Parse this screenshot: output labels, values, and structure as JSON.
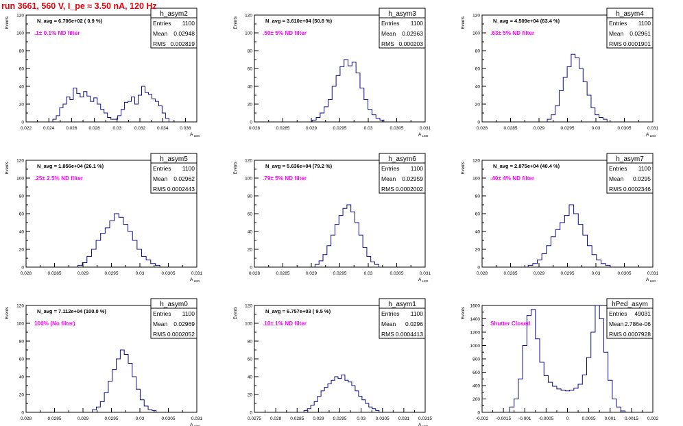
{
  "page": {
    "title": "run 3661,   560 V, I_pe ≈ 3.50 nA, 120 Hz"
  },
  "chart_data": [
    {
      "type": "histogram",
      "name": "h_asym2",
      "title": "",
      "xlabel": "A_LED",
      "ylabel": "Events",
      "xlim": [
        0.022,
        0.037
      ],
      "ylim": [
        0,
        120
      ],
      "xticks": [
        0.022,
        0.024,
        0.026,
        0.028,
        0.03,
        0.032,
        0.034,
        0.036
      ],
      "xtick_labels": [
        "0.022",
        "0.024",
        "0.026",
        "0.028",
        "0.03",
        "0.032",
        "0.034",
        "0.036"
      ],
      "yticks": [
        0,
        20,
        40,
        60,
        80,
        100,
        120
      ],
      "stats": {
        "entries": "1100",
        "mean": "0.02948",
        "rms": "0.002819"
      },
      "navg": "N_avg = 6.706e+02 ( 0.9 %)",
      "filter": ".1± 0.1% ND filter",
      "x": [
        0.0245,
        0.0248,
        0.0251,
        0.0254,
        0.0257,
        0.026,
        0.0263,
        0.0266,
        0.0269,
        0.0272,
        0.0275,
        0.0278,
        0.0281,
        0.0284,
        0.0287,
        0.029,
        0.0293,
        0.0296,
        0.0299,
        0.0302,
        0.0305,
        0.0308,
        0.0311,
        0.0314,
        0.0317,
        0.032,
        0.0323,
        0.0326,
        0.0329,
        0.0332,
        0.0335,
        0.0338,
        0.0341,
        0.0344
      ],
      "values": [
        3,
        7,
        16,
        20,
        28,
        25,
        38,
        32,
        28,
        34,
        29,
        23,
        27,
        20,
        14,
        10,
        5,
        3,
        3,
        7,
        14,
        22,
        23,
        28,
        20,
        30,
        40,
        33,
        31,
        26,
        23,
        18,
        10,
        4
      ]
    },
    {
      "type": "histogram",
      "name": "h_asym3",
      "title": "",
      "xlabel": "A_LED",
      "ylabel": "Events",
      "xlim": [
        0.028,
        0.031
      ],
      "ylim": [
        0,
        120
      ],
      "xticks": [
        0.028,
        0.0285,
        0.029,
        0.0295,
        0.03,
        0.0305,
        0.031
      ],
      "xtick_labels": [
        "0.028",
        "0.0285",
        "0.029",
        "0.0295",
        "0.03",
        "0.0305",
        "0.031"
      ],
      "yticks": [
        0,
        20,
        40,
        60,
        80,
        100,
        120
      ],
      "stats": {
        "entries": "1100",
        "mean": "0.02963",
        "rms": "0.000203"
      },
      "navg": "N_avg = 3.610e+04 (50.8 %)",
      "filter": ".50± 5% ND filter",
      "x": [
        0.02905,
        0.02912,
        0.02919,
        0.02926,
        0.02933,
        0.0294,
        0.02947,
        0.02954,
        0.02961,
        0.02968,
        0.02975,
        0.02982,
        0.02989,
        0.02996,
        0.03003,
        0.0301,
        0.03017,
        0.03024
      ],
      "values": [
        2,
        5,
        10,
        17,
        25,
        40,
        52,
        62,
        70,
        63,
        67,
        55,
        38,
        25,
        14,
        8,
        4,
        2
      ]
    },
    {
      "type": "histogram",
      "name": "h_asym4",
      "title": "",
      "xlabel": "A_LED",
      "ylabel": "Events",
      "xlim": [
        0.028,
        0.031
      ],
      "ylim": [
        0,
        120
      ],
      "xticks": [
        0.028,
        0.0285,
        0.029,
        0.0295,
        0.03,
        0.0305,
        0.031
      ],
      "xtick_labels": [
        "0.028",
        "0.0285",
        "0.029",
        "0.0295",
        "0.03",
        "0.0305",
        "0.031"
      ],
      "yticks": [
        0,
        20,
        40,
        60,
        80,
        100,
        120
      ],
      "stats": {
        "entries": "1100",
        "mean": "0.02961",
        "rms": "0.0001901"
      },
      "navg": "N_avg = 4.509e+04 (63.4 %)",
      "filter": ".63± 5% ND filter",
      "x": [
        0.02918,
        0.02925,
        0.02932,
        0.02939,
        0.02946,
        0.02953,
        0.0296,
        0.02967,
        0.02974,
        0.02981,
        0.02988,
        0.02995,
        0.03002,
        0.03009,
        0.03016
      ],
      "values": [
        3,
        8,
        18,
        35,
        50,
        62,
        76,
        72,
        60,
        45,
        30,
        16,
        8,
        5,
        3
      ]
    },
    {
      "type": "histogram",
      "name": "h_asym5",
      "title": "",
      "xlabel": "A_LED",
      "ylabel": "Events",
      "xlim": [
        0.028,
        0.031
      ],
      "ylim": [
        0,
        120
      ],
      "xticks": [
        0.028,
        0.0285,
        0.029,
        0.0295,
        0.03,
        0.0305,
        0.031
      ],
      "xtick_labels": [
        "0.028",
        "0.0285",
        "0.029",
        "0.0295",
        "0.03",
        "0.0305",
        "0.031"
      ],
      "yticks": [
        0,
        20,
        40,
        60,
        80,
        100,
        120
      ],
      "stats": {
        "entries": "1100",
        "mean": "0.02962",
        "rms": "0.0002443"
      },
      "navg": "N_avg = 1.856e+04 (26.1 %)",
      "filter": ".25± 2.5% ND filter",
      "x": [
        0.02895,
        0.02903,
        0.02911,
        0.02919,
        0.02927,
        0.02935,
        0.02943,
        0.02951,
        0.02959,
        0.02967,
        0.02975,
        0.02983,
        0.02991,
        0.02999,
        0.03007,
        0.03015,
        0.03023,
        0.03031
      ],
      "values": [
        2,
        5,
        12,
        20,
        30,
        38,
        44,
        52,
        60,
        56,
        48,
        40,
        30,
        20,
        12,
        8,
        4,
        2
      ]
    },
    {
      "type": "histogram",
      "name": "h_asym6",
      "title": "",
      "xlabel": "A_LED",
      "ylabel": "Events",
      "xlim": [
        0.028,
        0.031
      ],
      "ylim": [
        0,
        120
      ],
      "xticks": [
        0.028,
        0.0285,
        0.029,
        0.0295,
        0.03,
        0.0305,
        0.031
      ],
      "xtick_labels": [
        "0.028",
        "0.0285",
        "0.029",
        "0.0295",
        "0.03",
        "0.0305",
        "0.031"
      ],
      "yticks": [
        0,
        20,
        40,
        60,
        80,
        100,
        120
      ],
      "stats": {
        "entries": "1100",
        "mean": "0.02959",
        "rms": "0.0002002"
      },
      "navg": "N_avg = 5.636e+04 (79.2 %)",
      "filter": ".79± 5% ND filter",
      "x": [
        0.0291,
        0.02917,
        0.02924,
        0.02931,
        0.02938,
        0.02945,
        0.02952,
        0.02959,
        0.02966,
        0.02973,
        0.0298,
        0.02987,
        0.02994,
        0.03001,
        0.03008,
        0.03015
      ],
      "values": [
        3,
        7,
        14,
        24,
        36,
        48,
        58,
        66,
        70,
        62,
        50,
        36,
        22,
        12,
        6,
        3
      ]
    },
    {
      "type": "histogram",
      "name": "h_asym7",
      "title": "",
      "xlabel": "A_LED",
      "ylabel": "Events",
      "xlim": [
        0.028,
        0.031
      ],
      "ylim": [
        0,
        120
      ],
      "xticks": [
        0.028,
        0.0285,
        0.029,
        0.0295,
        0.03,
        0.0305,
        0.031
      ],
      "xtick_labels": [
        "0.028",
        "0.0285",
        "0.029",
        "0.0295",
        "0.03",
        "0.0305",
        "0.031"
      ],
      "yticks": [
        0,
        20,
        40,
        60,
        80,
        100,
        120
      ],
      "stats": {
        "entries": "1100",
        "mean": "0.0295",
        "rms": "0.0002346"
      },
      "navg": "N_avg = 2.875e+04 (40.4 %)",
      "filter": ".40± 4% ND filter",
      "x": [
        0.02885,
        0.02893,
        0.02901,
        0.02909,
        0.02917,
        0.02925,
        0.02933,
        0.02941,
        0.02949,
        0.02957,
        0.02965,
        0.02973,
        0.02981,
        0.02989,
        0.02997,
        0.03005,
        0.03013,
        0.03021
      ],
      "values": [
        2,
        4,
        8,
        15,
        24,
        34,
        42,
        50,
        58,
        70,
        60,
        48,
        36,
        24,
        14,
        8,
        4,
        2
      ]
    },
    {
      "type": "histogram",
      "name": "h_asym0",
      "title": "",
      "xlabel": "A_LED",
      "ylabel": "Events",
      "xlim": [
        0.028,
        0.031
      ],
      "ylim": [
        0,
        120
      ],
      "xticks": [
        0.028,
        0.0285,
        0.029,
        0.0295,
        0.03,
        0.0305,
        0.031
      ],
      "xtick_labels": [
        "0.028",
        "0.0285",
        "0.029",
        "0.0295",
        "0.03",
        "0.0305",
        "0.031"
      ],
      "yticks": [
        0,
        20,
        40,
        60,
        80,
        100,
        120
      ],
      "stats": {
        "entries": "1100",
        "mean": "0.02969",
        "rms": "0.0002052"
      },
      "navg": "N_avg = 7.112e+04 (100.0 %)",
      "filter": "100% (No filter)",
      "x": [
        0.0292,
        0.02927,
        0.02934,
        0.02941,
        0.02948,
        0.02955,
        0.02962,
        0.02969,
        0.02976,
        0.02983,
        0.0299,
        0.02997,
        0.03004,
        0.03011,
        0.03018,
        0.03025
      ],
      "values": [
        3,
        6,
        12,
        22,
        35,
        48,
        60,
        70,
        65,
        55,
        40,
        26,
        14,
        7,
        3,
        2
      ]
    },
    {
      "type": "histogram",
      "name": "h_asym1",
      "title": "",
      "xlabel": "A_LED",
      "ylabel": "Events",
      "xlim": [
        0.0275,
        0.0315
      ],
      "ylim": [
        0,
        120
      ],
      "xticks": [
        0.0275,
        0.028,
        0.0285,
        0.029,
        0.0295,
        0.03,
        0.0305,
        0.031,
        0.0315
      ],
      "xtick_labels": [
        "0.0275",
        "0.028",
        "0.0285",
        "0.029",
        "0.0295",
        "0.03",
        "0.0305",
        "0.031",
        "0.0315"
      ],
      "yticks": [
        0,
        20,
        40,
        60,
        80,
        100,
        120
      ],
      "stats": {
        "entries": "1100",
        "mean": "0.0296",
        "rms": "0.0004413"
      },
      "navg": "N_avg = 6.757e+03 ( 9.5 %)",
      "filter": ".10± 1% ND filter",
      "x": [
        0.0287,
        0.02878,
        0.02886,
        0.02894,
        0.02902,
        0.0291,
        0.02918,
        0.02926,
        0.02934,
        0.02942,
        0.0295,
        0.02958,
        0.02966,
        0.02974,
        0.02982,
        0.0299,
        0.02998,
        0.03006,
        0.03014,
        0.03022,
        0.0303,
        0.03038
      ],
      "values": [
        2,
        4,
        8,
        12,
        18,
        24,
        28,
        32,
        36,
        40,
        38,
        42,
        36,
        34,
        30,
        24,
        18,
        14,
        10,
        6,
        4,
        2
      ]
    },
    {
      "type": "histogram",
      "name": "hPed_asym",
      "title": "",
      "xlabel": "",
      "ylabel": "Events",
      "xlim": [
        -0.002,
        0.002
      ],
      "ylim": [
        0,
        1600
      ],
      "xticks": [
        -0.002,
        -0.0015,
        -0.001,
        -0.0005,
        0,
        0.0005,
        0.001,
        0.0015,
        0.002
      ],
      "xtick_labels": [
        "-0.002",
        "-0.0015",
        "-0.001",
        "-0.0005",
        "0",
        "0.0005",
        "0.001",
        "0.0015",
        "0.002"
      ],
      "yticks": [
        0,
        200,
        400,
        600,
        800,
        1000,
        1200,
        1400,
        1600
      ],
      "stats": {
        "entries": "49031",
        "mean": "2.786e-06",
        "rms": "0.0007928"
      },
      "navg": "",
      "filter": "Shutter Closed",
      "x": [
        -0.0013,
        -0.0012,
        -0.0011,
        -0.001,
        -0.0009,
        -0.0008,
        -0.0007,
        -0.0006,
        -0.0005,
        -0.0004,
        -0.0003,
        -0.0002,
        -0.0001,
        0,
        0.0001,
        0.0002,
        0.0003,
        0.0004,
        0.0005,
        0.0006,
        0.0007,
        0.0008,
        0.0009,
        0.001,
        0.0011,
        0.0012,
        0.0013
      ],
      "values": [
        80,
        200,
        500,
        1000,
        1450,
        1540,
        1100,
        750,
        550,
        450,
        390,
        350,
        330,
        320,
        330,
        360,
        420,
        560,
        820,
        1200,
        1600,
        1400,
        900,
        480,
        200,
        80,
        20
      ]
    }
  ]
}
